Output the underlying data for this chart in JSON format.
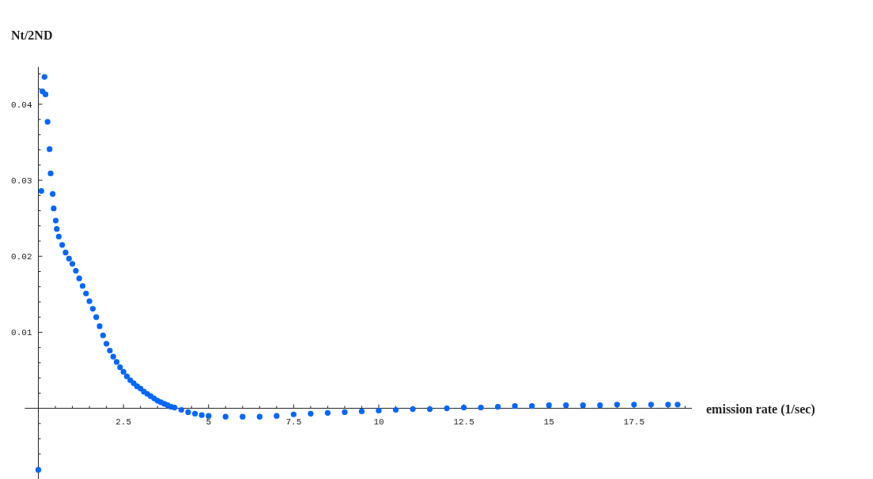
{
  "chart_data": {
    "type": "scatter",
    "xlabel": "emission rate (1/sec)",
    "ylabel": "Nt/2ND",
    "marker": "circle",
    "grid": false,
    "xlim": [
      -0.4,
      19.2
    ],
    "ylim": [
      -0.0093,
      0.0449
    ],
    "xticks": [
      {
        "value": 0.5,
        "label": null
      },
      {
        "value": 1,
        "label": null
      },
      {
        "value": 1.5,
        "label": null
      },
      {
        "value": 2,
        "label": null
      },
      2.5,
      {
        "value": 3,
        "label": null
      },
      {
        "value": 3.5,
        "label": null
      },
      {
        "value": 4,
        "label": null
      },
      {
        "value": 4.5,
        "label": null
      },
      5,
      {
        "value": 5.5,
        "label": null
      },
      {
        "value": 6,
        "label": null
      },
      {
        "value": 6.5,
        "label": null
      },
      {
        "value": 7,
        "label": null
      },
      7.5,
      {
        "value": 8,
        "label": null
      },
      {
        "value": 8.5,
        "label": null
      },
      {
        "value": 9,
        "label": null
      },
      {
        "value": 9.5,
        "label": null
      },
      10,
      {
        "value": 10.5,
        "label": null
      },
      {
        "value": 11,
        "label": null
      },
      {
        "value": 11.5,
        "label": null
      },
      {
        "value": 12,
        "label": null
      },
      12.5,
      {
        "value": 13,
        "label": null
      },
      {
        "value": 13.5,
        "label": null
      },
      {
        "value": 14,
        "label": null
      },
      {
        "value": 14.5,
        "label": null
      },
      15,
      {
        "value": 15.5,
        "label": null
      },
      {
        "value": 16,
        "label": null
      },
      {
        "value": 16.5,
        "label": null
      },
      {
        "value": 17,
        "label": null
      },
      17.5,
      {
        "value": 18,
        "label": null
      },
      {
        "value": 18.5,
        "label": null
      },
      {
        "value": 19,
        "label": null
      }
    ],
    "yticks": [
      {
        "value": -0.008,
        "label": null
      },
      {
        "value": -0.006,
        "label": null
      },
      {
        "value": -0.004,
        "label": null
      },
      {
        "value": -0.002,
        "label": null
      },
      {
        "value": 0.002,
        "label": null
      },
      {
        "value": 0.004,
        "label": null
      },
      {
        "value": 0.006,
        "label": null
      },
      {
        "value": 0.008,
        "label": null
      },
      0.01,
      {
        "value": 0.012,
        "label": null
      },
      {
        "value": 0.014,
        "label": null
      },
      {
        "value": 0.016,
        "label": null
      },
      {
        "value": 0.018,
        "label": null
      },
      0.02,
      {
        "value": 0.022,
        "label": null
      },
      {
        "value": 0.024,
        "label": null
      },
      {
        "value": 0.026,
        "label": null
      },
      {
        "value": 0.028,
        "label": null
      },
      0.03,
      {
        "value": 0.032,
        "label": null
      },
      {
        "value": 0.034,
        "label": null
      },
      {
        "value": 0.036,
        "label": null
      },
      {
        "value": 0.038,
        "label": null
      },
      0.04,
      {
        "value": 0.042,
        "label": null
      },
      {
        "value": 0.044,
        "label": null
      }
    ],
    "series": [
      {
        "color": "#0066ff",
        "x": [
          0.0,
          0.088,
          0.12,
          0.18,
          0.21,
          0.27,
          0.33,
          0.36,
          0.42,
          0.45,
          0.51,
          0.54,
          0.6,
          0.7,
          0.8,
          0.9,
          1.0,
          1.1,
          1.2,
          1.3,
          1.4,
          1.5,
          1.6,
          1.7,
          1.8,
          1.9,
          2.0,
          2.1,
          2.2,
          2.3,
          2.4,
          2.5,
          2.6,
          2.7,
          2.8,
          2.9,
          3.0,
          3.1,
          3.2,
          3.3,
          3.4,
          3.5,
          3.6,
          3.7,
          3.8,
          3.9,
          4.0,
          4.2,
          4.4,
          4.6,
          4.8,
          5.0,
          5.5,
          6.0,
          6.5,
          7.0,
          7.5,
          8.0,
          8.5,
          9.0,
          9.5,
          10.0,
          10.5,
          11.0,
          11.5,
          12.0,
          12.5,
          13.0,
          13.5,
          14.0,
          14.5,
          15.0,
          15.5,
          16.0,
          16.5,
          17.0,
          17.5,
          18.0,
          18.5,
          18.78
        ],
        "values": [
          -0.0081,
          0.0286,
          0.0417,
          0.0436,
          0.0413,
          0.0377,
          0.0341,
          0.0309,
          0.0282,
          0.0263,
          0.0247,
          0.0236,
          0.0226,
          0.0215,
          0.0205,
          0.0197,
          0.019,
          0.0181,
          0.0171,
          0.0161,
          0.0151,
          0.0141,
          0.0131,
          0.012,
          0.0108,
          0.0096,
          0.0085,
          0.0076,
          0.0068,
          0.0061,
          0.0054,
          0.0048,
          0.0042,
          0.0037,
          0.0033,
          0.0029,
          0.0026,
          0.0022,
          0.0019,
          0.0016,
          0.0013,
          0.001,
          0.0008,
          0.0006,
          0.0004,
          0.0002,
          0.0001,
          -0.0002,
          -0.0005,
          -0.0007,
          -0.0009,
          -0.001,
          -0.0011,
          -0.0011,
          -0.0011,
          -0.001,
          -0.0008,
          -0.0007,
          -0.0006,
          -0.0005,
          -0.0004,
          -0.0003,
          -0.0002,
          -0.0001,
          -0.0001,
          0.0,
          0.0001,
          0.0001,
          0.0002,
          0.0003,
          0.0003,
          0.0004,
          0.0004,
          0.0004,
          0.0004,
          0.0005,
          0.0005,
          0.0005,
          0.0005,
          0.0005
        ]
      }
    ]
  }
}
